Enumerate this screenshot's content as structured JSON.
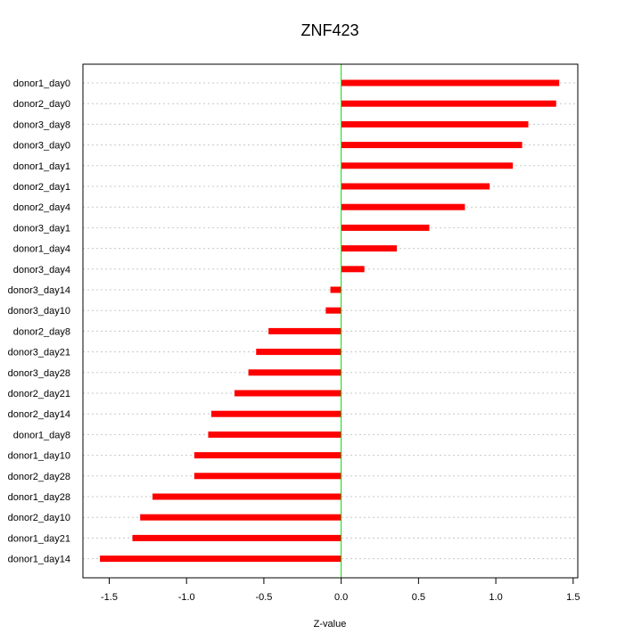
{
  "chart_data": {
    "type": "bar",
    "orientation": "horizontal",
    "title": "ZNF423",
    "xlabel": "Z-value",
    "ylabel": "",
    "xlim": [
      -1.67,
      1.53
    ],
    "xticks": [
      -1.5,
      -1.0,
      -0.5,
      0.0,
      0.5,
      1.0,
      1.5
    ],
    "xtick_labels": [
      "-1.5",
      "-1.0",
      "-0.5",
      "0.0",
      "0.5",
      "1.0",
      "1.5"
    ],
    "grid": "horizontal dotted",
    "reference_line": 0,
    "categories": [
      "donor1_day0",
      "donor2_day0",
      "donor3_day8",
      "donor3_day0",
      "donor1_day1",
      "donor2_day1",
      "donor2_day4",
      "donor3_day1",
      "donor1_day4",
      "donor3_day4",
      "donor3_day14",
      "donor3_day10",
      "donor2_day8",
      "donor3_day21",
      "donor3_day28",
      "donor2_day21",
      "donor2_day14",
      "donor1_day8",
      "donor1_day10",
      "donor2_day28",
      "donor1_day28",
      "donor2_day10",
      "donor1_day21",
      "donor1_day14"
    ],
    "values": [
      1.41,
      1.39,
      1.21,
      1.17,
      1.11,
      0.96,
      0.8,
      0.57,
      0.36,
      0.15,
      -0.07,
      -0.1,
      -0.47,
      -0.55,
      -0.6,
      -0.69,
      -0.84,
      -0.86,
      -0.95,
      -0.95,
      -1.22,
      -1.3,
      -1.35,
      -1.56
    ]
  },
  "colors": {
    "bar": "#ff0000",
    "zero_line": "#00dd00",
    "grid": "#c8c8c8",
    "frame": "#000000"
  }
}
